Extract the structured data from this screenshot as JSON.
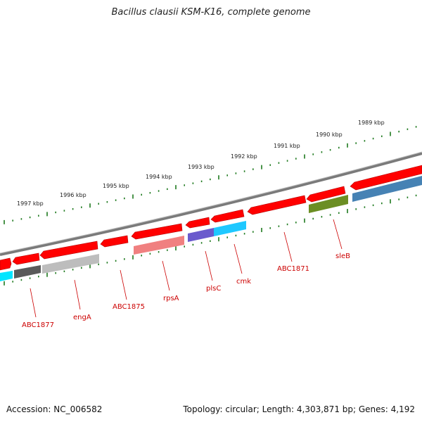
{
  "title": "Bacillus clausii KSM-K16, complete genome",
  "footer": {
    "accession": "Accession: NC_006582",
    "summary": "Topology: circular; Length: 4,303,871 bp; Genes: 4,192"
  },
  "axis_ticks": [
    {
      "label": "1997 kbp"
    },
    {
      "label": "1996 kbp"
    },
    {
      "label": "1995 kbp"
    },
    {
      "label": "1994 kbp"
    },
    {
      "label": "1993 kbp"
    },
    {
      "label": "1992 kbp"
    },
    {
      "label": "1991 kbp"
    },
    {
      "label": "1990 kbp"
    },
    {
      "label": "1989 kbp"
    }
  ],
  "gene_labels": [
    {
      "name": "ABC1877"
    },
    {
      "name": "engA"
    },
    {
      "name": "ABC1875"
    },
    {
      "name": "rpsA"
    },
    {
      "name": "plsC"
    },
    {
      "name": "cmk"
    },
    {
      "name": "ABC1871"
    },
    {
      "name": "sleB"
    }
  ],
  "colors": {
    "feature_red": "#ff0000",
    "backbone_gray": "#7a7a7a",
    "tick_green": "#1f7a1f",
    "label_red": "#cc0000",
    "cog_cyan": "#00e5ff",
    "cog_dark_gray": "#5a5a5a",
    "cog_light_gray": "#bdbdbd",
    "cog_pink": "#f08080",
    "cog_purple": "#6a5acd",
    "cog_sky": "#1ec8ff",
    "cog_olive": "#6b8e23",
    "cog_steel": "#4682b4"
  }
}
